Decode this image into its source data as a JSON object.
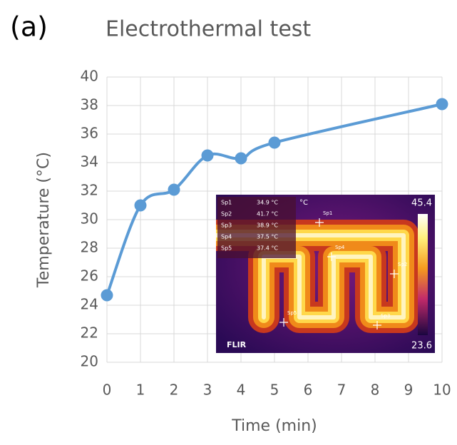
{
  "chart_data": {
    "type": "line",
    "panel_label": "(a)",
    "title": "Electrothermal test",
    "x_label": "Time (min)",
    "y_label": "Temperature (°C)",
    "x": [
      0,
      1,
      2,
      3,
      4,
      5,
      10
    ],
    "series": [
      {
        "color": "#5b9bd5",
        "values": [
          24.7,
          31.0,
          32.1,
          34.5,
          34.3,
          35.4,
          38.1
        ]
      }
    ],
    "xlim": [
      0,
      10
    ],
    "xticks": [
      0,
      1,
      2,
      3,
      4,
      5,
      6,
      7,
      8,
      9,
      10
    ],
    "ylim": [
      20,
      40
    ],
    "yticks": [
      20,
      22,
      24,
      26,
      28,
      30,
      32,
      34,
      36,
      38,
      40
    ],
    "grid": true,
    "inset": {
      "unit": "°C",
      "scale_max": 45.4,
      "scale_min": 23.6,
      "logo": "FLIR",
      "spots": [
        {
          "name": "Sp1",
          "reading": "34.9 °C"
        },
        {
          "name": "Sp2",
          "reading": "41.7 °C"
        },
        {
          "name": "Sp3",
          "reading": "38.9 °C"
        },
        {
          "name": "Sp4",
          "reading": "37.5 °C"
        },
        {
          "name": "Sp5",
          "reading": "37.4 °C"
        }
      ]
    }
  }
}
